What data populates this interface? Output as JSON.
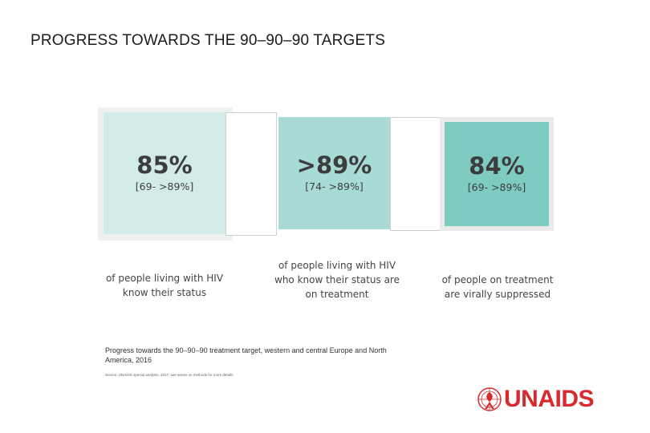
{
  "slide": {
    "title": "PROGRESS TOWARDS THE 90–90–90 TARGETS"
  },
  "cards": [
    {
      "value": "85%",
      "range": "[69- >89%]",
      "description_lines": [
        "of people living with HIV",
        "know their status"
      ]
    },
    {
      "value": ">89%",
      "range": "[74- >89%]",
      "description_lines": [
        "of people living with HIV",
        "who know their status are",
        "on treatment"
      ]
    },
    {
      "value": "84%",
      "range": "[69- >89%]",
      "description_lines": [
        "of people on treatment",
        "are virally suppressed"
      ]
    }
  ],
  "caption": "Progress towards the 90–90–90 treatment target, western and central Europe and North America, 2016",
  "source": "Source: UNAIDS special analysis, 2017; see annex on methods for more details.",
  "logo": {
    "text": "UNAIDS",
    "color": "#d8292f",
    "icon": "unaids-ribbon-emblem-icon"
  },
  "colors": {
    "box1": "#d3ebe8",
    "box2": "#a8dbd5",
    "box3": "#7ecbc1"
  }
}
